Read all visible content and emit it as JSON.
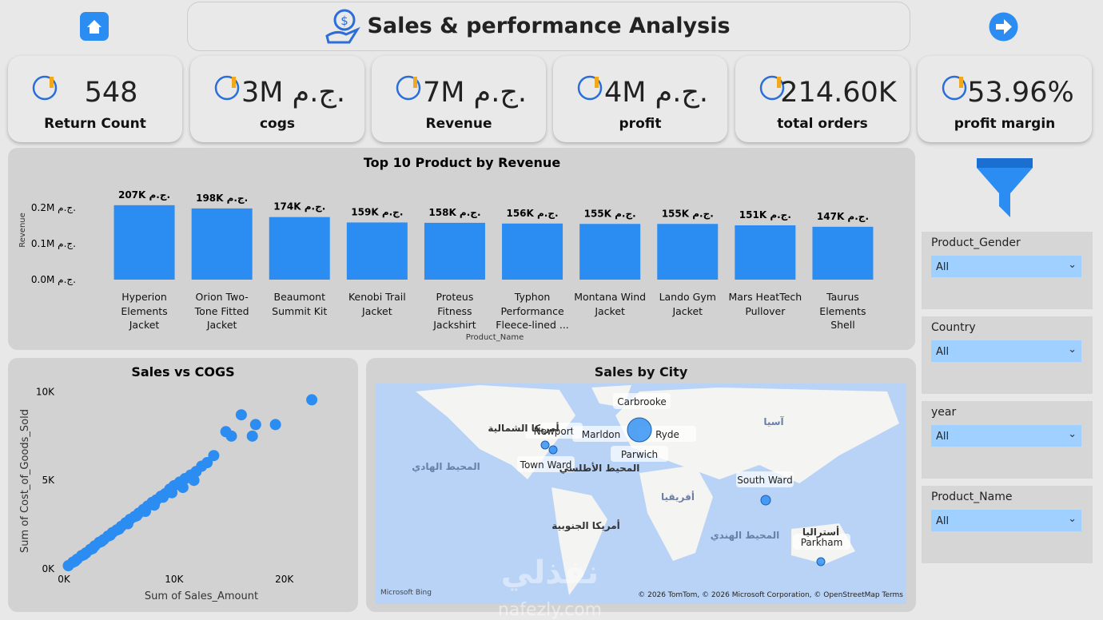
{
  "header": {
    "title": "Sales & performance Analysis"
  },
  "kpis": [
    {
      "value": "548",
      "label": "Return Count"
    },
    {
      "value": "3M ج.م.",
      "label": "cogs"
    },
    {
      "value": "7M ج.م.",
      "label": "Revenue"
    },
    {
      "value": "4M ج.م.",
      "label": "profit"
    },
    {
      "value": "214.60K",
      "label": "total orders"
    },
    {
      "value": "53.96%",
      "label": "profit margin"
    }
  ],
  "filters": [
    {
      "label": "Product_Gender",
      "value": "All"
    },
    {
      "label": "Country",
      "value": "All"
    },
    {
      "label": "year",
      "value": "All"
    },
    {
      "label": "Product_Name",
      "value": "All"
    }
  ],
  "chart_data": [
    {
      "type": "bar",
      "title": "Top 10 Product by Revenue",
      "y_label": "Revenue",
      "x_label": "Product_Name",
      "color": "#2b8cf2",
      "categories": [
        "Hyperion Elements Jacket",
        "Orion Two-Tone Fitted Jacket",
        "Beaumont Summit Kit",
        "Kenobi Trail Jacket",
        "Proteus Fitness Jackshirt",
        "Typhon Performance Fleece-lined ...",
        "Montana Wind Jacket",
        "Lando Gym Jacket",
        "Mars HeatTech Pullover",
        "Taurus Elements Shell"
      ],
      "values": [
        207000,
        198000,
        174000,
        159000,
        158000,
        156000,
        155000,
        155000,
        151000,
        147000
      ],
      "value_labels": [
        "207K ج.م.",
        "198K ج.م.",
        "174K ج.م.",
        "159K ج.م.",
        "158K ج.م.",
        "156K ج.م.",
        "155K ج.م.",
        "155K ج.م.",
        "151K ج.م.",
        "147K ج.م."
      ],
      "ylim": [
        0,
        240000
      ],
      "yticks": [
        {
          "value": 0,
          "label": "0.0M ج.م."
        },
        {
          "value": 100000,
          "label": "0.1M ج.م."
        },
        {
          "value": 200000,
          "label": "0.2M ج.م."
        }
      ]
    },
    {
      "type": "scatter",
      "title": "Sales vs COGS",
      "x_label": "Sum of Sales_Amount",
      "y_label": "Sum of Cost_of_Goods_Sold",
      "color": "#2b8cf2",
      "x": [
        22500,
        16100,
        17400,
        19200,
        17100,
        14700,
        15200,
        13600,
        13000,
        12500,
        12000,
        11500,
        11000,
        10500,
        10000,
        9600,
        9200,
        8800,
        8400,
        8000,
        7600,
        7200,
        6800,
        6400,
        6000,
        5600,
        5200,
        4800,
        4400,
        4000,
        3600,
        3200,
        2800,
        2400,
        2000,
        1600,
        1200,
        800,
        400,
        11800,
        10800,
        9800,
        9000,
        8200,
        7400,
        6600,
        5800,
        5000,
        4200,
        3400,
        2600,
        1800,
        1000
      ],
      "y": [
        9550,
        8700,
        8150,
        8150,
        7500,
        7750,
        7500,
        6400,
        6000,
        5800,
        5500,
        5300,
        5100,
        4900,
        4700,
        4500,
        4250,
        4100,
        3900,
        3750,
        3550,
        3350,
        3150,
        2950,
        2800,
        2600,
        2400,
        2200,
        2050,
        1850,
        1650,
        1500,
        1300,
        1100,
        900,
        750,
        550,
        370,
        180,
        5000,
        4600,
        4300,
        4050,
        3600,
        3250,
        3000,
        2550,
        2250,
        1900,
        1550,
        1150,
        800,
        430
      ],
      "xlim": [
        0,
        23000
      ],
      "ylim": [
        0,
        10200
      ],
      "xticks": [
        {
          "value": 0,
          "label": "0K"
        },
        {
          "value": 10000,
          "label": "10K"
        },
        {
          "value": 20000,
          "label": "20K"
        }
      ],
      "yticks": [
        {
          "value": 0,
          "label": "0K"
        },
        {
          "value": 5000,
          "label": "5K"
        },
        {
          "value": 10000,
          "label": "10K"
        }
      ]
    }
  ],
  "map": {
    "title": "Sales by City",
    "cities": [
      "Carbrooke",
      "Newport",
      "Marldon",
      "Ryde",
      "Parwich",
      "Town Ward",
      "South Ward",
      "Parkham"
    ],
    "regions": [
      "آسيا",
      "أمريكا الشمالية",
      "المحيط الهادي",
      "المحيط الأطلسي",
      "أفريقيا",
      "أمريكا الجنوبية",
      "المحيط الهندي",
      "أستراليا"
    ],
    "provider": "Microsoft Bing",
    "attribution": "© 2026 TomTom, © 2026 Microsoft Corporation, © OpenStreetMap Terms"
  },
  "watermark": [
    "نفذلي",
    "nafezly.com"
  ]
}
